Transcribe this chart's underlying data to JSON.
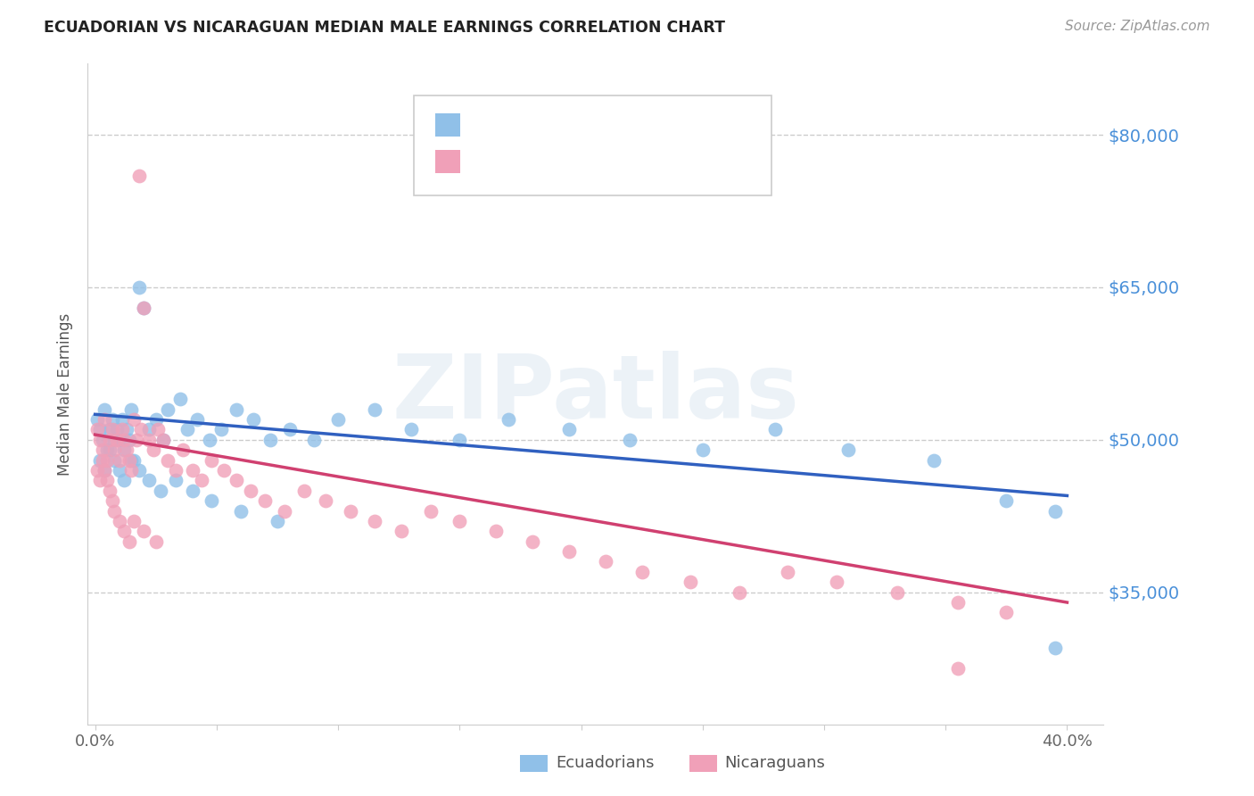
{
  "title": "ECUADORIAN VS NICARAGUAN MEDIAN MALE EARNINGS CORRELATION CHART",
  "source": "Source: ZipAtlas.com",
  "ylabel": "Median Male Earnings",
  "y_tick_labels": [
    "$35,000",
    "$50,000",
    "$65,000",
    "$80,000"
  ],
  "y_ticks": [
    35000,
    50000,
    65000,
    80000
  ],
  "ylim": [
    22000,
    87000
  ],
  "xlim": [
    -0.003,
    0.415
  ],
  "blue_color": "#90c0e8",
  "pink_color": "#f0a0b8",
  "blue_line_color": "#3060c0",
  "pink_line_color": "#d04070",
  "watermark": "ZIPatlas",
  "legend_label_blue": "Ecuadorians",
  "legend_label_pink": "Nicaraguans",
  "blue_trend_x0": 0.0,
  "blue_trend_y0": 52500,
  "blue_trend_x1": 0.4,
  "blue_trend_y1": 44500,
  "pink_trend_x0": 0.0,
  "pink_trend_y0": 50500,
  "pink_trend_x1": 0.4,
  "pink_trend_y1": 34000,
  "ecu_x": [
    0.001,
    0.002,
    0.003,
    0.004,
    0.005,
    0.006,
    0.007,
    0.008,
    0.009,
    0.01,
    0.011,
    0.012,
    0.013,
    0.014,
    0.015,
    0.016,
    0.018,
    0.02,
    0.022,
    0.025,
    0.028,
    0.03,
    0.035,
    0.038,
    0.042,
    0.047,
    0.052,
    0.058,
    0.065,
    0.072,
    0.08,
    0.09,
    0.1,
    0.115,
    0.13,
    0.15,
    0.17,
    0.195,
    0.22,
    0.25,
    0.28,
    0.31,
    0.345,
    0.375,
    0.395,
    0.002,
    0.004,
    0.006,
    0.008,
    0.01,
    0.012,
    0.015,
    0.018,
    0.022,
    0.027,
    0.033,
    0.04,
    0.048,
    0.06,
    0.075,
    0.395
  ],
  "ecu_y": [
    52000,
    51000,
    50000,
    53000,
    49000,
    51000,
    52000,
    50000,
    51000,
    50000,
    52000,
    49000,
    51000,
    50000,
    53000,
    48000,
    65000,
    63000,
    51000,
    52000,
    50000,
    53000,
    54000,
    51000,
    52000,
    50000,
    51000,
    53000,
    52000,
    50000,
    51000,
    50000,
    52000,
    53000,
    51000,
    50000,
    52000,
    51000,
    50000,
    49000,
    51000,
    49000,
    48000,
    44000,
    29500,
    48000,
    47000,
    49000,
    48000,
    47000,
    46000,
    48000,
    47000,
    46000,
    45000,
    46000,
    45000,
    44000,
    43000,
    42000,
    43000
  ],
  "nic_x": [
    0.001,
    0.002,
    0.003,
    0.004,
    0.005,
    0.006,
    0.007,
    0.008,
    0.009,
    0.01,
    0.011,
    0.012,
    0.013,
    0.014,
    0.015,
    0.016,
    0.017,
    0.018,
    0.019,
    0.02,
    0.022,
    0.024,
    0.026,
    0.028,
    0.03,
    0.033,
    0.036,
    0.04,
    0.044,
    0.048,
    0.053,
    0.058,
    0.064,
    0.07,
    0.078,
    0.086,
    0.095,
    0.105,
    0.115,
    0.126,
    0.138,
    0.15,
    0.165,
    0.18,
    0.195,
    0.21,
    0.225,
    0.245,
    0.265,
    0.285,
    0.305,
    0.33,
    0.355,
    0.375,
    0.001,
    0.002,
    0.003,
    0.004,
    0.005,
    0.006,
    0.007,
    0.008,
    0.01,
    0.012,
    0.014,
    0.016,
    0.02,
    0.025,
    0.355
  ],
  "nic_y": [
    51000,
    50000,
    49000,
    52000,
    48000,
    50000,
    51000,
    49000,
    50000,
    48000,
    51000,
    50000,
    49000,
    48000,
    47000,
    52000,
    50000,
    76000,
    51000,
    63000,
    50000,
    49000,
    51000,
    50000,
    48000,
    47000,
    49000,
    47000,
    46000,
    48000,
    47000,
    46000,
    45000,
    44000,
    43000,
    45000,
    44000,
    43000,
    42000,
    41000,
    43000,
    42000,
    41000,
    40000,
    39000,
    38000,
    37000,
    36000,
    35000,
    37000,
    36000,
    35000,
    34000,
    33000,
    47000,
    46000,
    48000,
    47000,
    46000,
    45000,
    44000,
    43000,
    42000,
    41000,
    40000,
    42000,
    41000,
    40000,
    27500
  ]
}
